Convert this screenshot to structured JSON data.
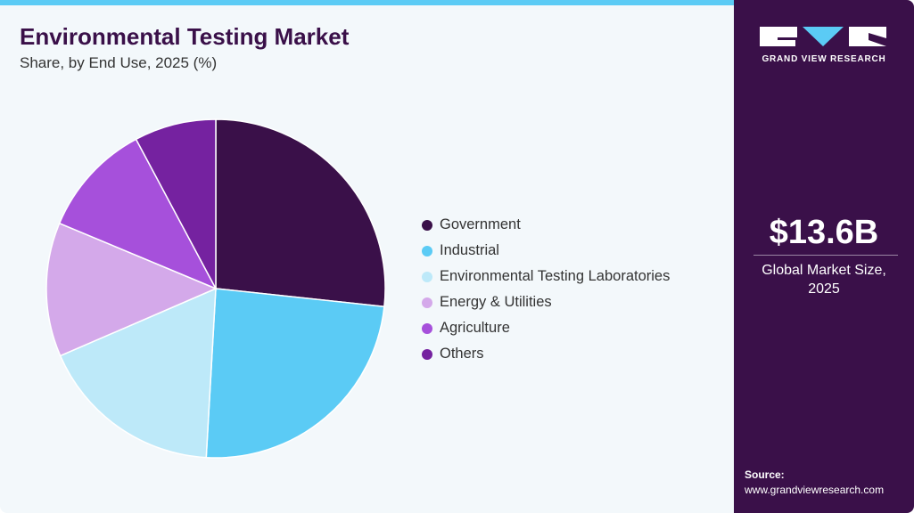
{
  "header": {
    "title": "Environmental Testing Market",
    "subtitle": "Share, by End Use, 2025 (%)"
  },
  "chart_data": {
    "type": "pie",
    "title": "Environmental Testing Market",
    "subtitle": "Share, by End Use, 2025 (%)",
    "categories": [
      "Government",
      "Industrial",
      "Environmental Testing Laboratories",
      "Energy & Utilities",
      "Agriculture",
      "Others"
    ],
    "values": [
      26.7,
      24.2,
      17.6,
      12.8,
      10.9,
      7.8
    ],
    "colors": [
      "#3a1049",
      "#5bcbf5",
      "#bde9f9",
      "#d4a9ea",
      "#a650db",
      "#7522a0"
    ],
    "legend_position": "right"
  },
  "sidebar": {
    "logo_text": "GRAND VIEW RESEARCH",
    "market_value": "$13.6B",
    "market_label_1": "Global Market Size,",
    "market_label_2": "2025",
    "source_label": "Source:",
    "source_url": "www.grandviewresearch.com"
  }
}
